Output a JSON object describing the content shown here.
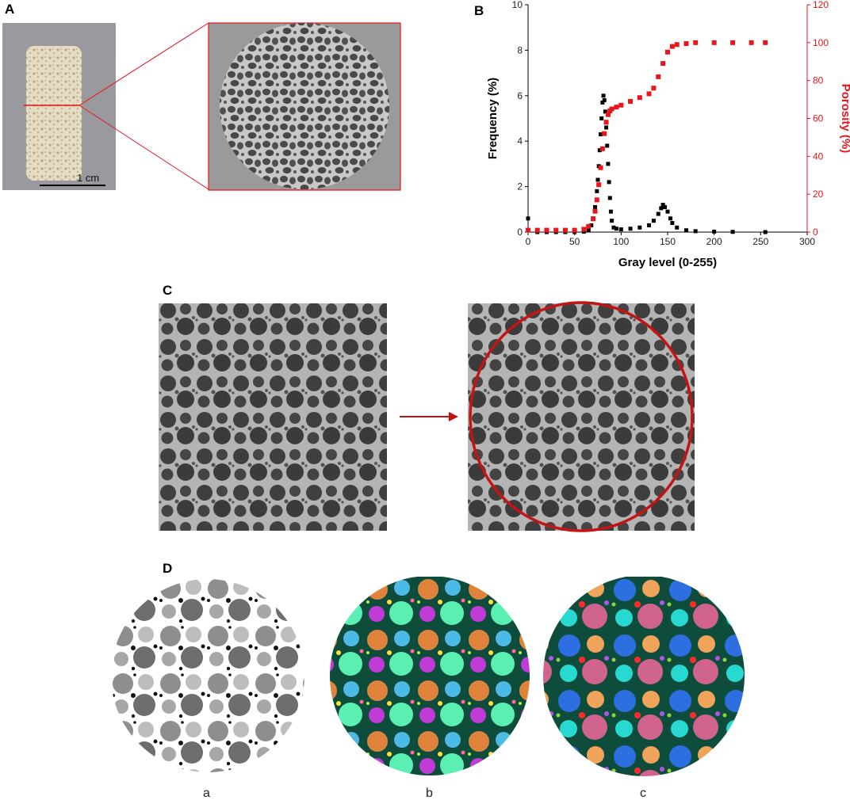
{
  "panels": {
    "A": {
      "label": "A",
      "scale_bar_text": "1 cm"
    },
    "B": {
      "label": "B"
    },
    "C": {
      "label": "C"
    },
    "D": {
      "label": "D",
      "sublabels": [
        "a",
        "b",
        "c"
      ]
    }
  },
  "chart_data": {
    "type": "scatter",
    "xlabel": "Gray level (0-255)",
    "ylabel_left": "Frequency (%)",
    "ylabel_right": "Porosity (%)",
    "xlim": [
      0,
      300
    ],
    "ylim_left": [
      0,
      10
    ],
    "ylim_right": [
      0,
      120
    ],
    "x_ticks": [
      0,
      50,
      100,
      150,
      200,
      250,
      300
    ],
    "y_left_ticks": [
      0,
      2,
      4,
      6,
      8,
      10
    ],
    "y_right_ticks": [
      0,
      20,
      40,
      60,
      80,
      100,
      120
    ],
    "colors": {
      "frequency": "#000000",
      "porosity": "#e8161b"
    },
    "series": [
      {
        "axis": "left",
        "x": [
          0,
          10,
          20,
          30,
          40,
          50,
          60,
          65,
          68,
          70,
          72,
          74,
          75,
          76,
          77,
          78,
          79,
          80,
          81,
          82,
          83,
          84,
          85,
          86,
          87,
          88,
          89,
          90,
          92,
          95,
          100,
          110,
          120,
          130,
          135,
          140,
          143,
          145,
          147,
          150,
          153,
          155,
          160,
          170,
          180,
          200,
          220,
          255
        ],
        "y": [
          0.6,
          0.0,
          0.0,
          0.0,
          0.0,
          0.0,
          0.02,
          0.1,
          0.3,
          0.6,
          1.1,
          1.8,
          2.3,
          2.9,
          3.6,
          4.3,
          5.0,
          5.7,
          6.0,
          5.8,
          5.3,
          4.6,
          3.8,
          3.0,
          2.2,
          1.5,
          0.9,
          0.5,
          0.2,
          0.15,
          0.12,
          0.15,
          0.2,
          0.3,
          0.5,
          0.8,
          1.05,
          1.2,
          1.1,
          0.9,
          0.6,
          0.4,
          0.2,
          0.08,
          0.04,
          0.02,
          0.01,
          0.0
        ]
      },
      {
        "axis": "right",
        "x": [
          0,
          10,
          20,
          30,
          40,
          50,
          60,
          65,
          70,
          72,
          74,
          76,
          78,
          80,
          82,
          84,
          86,
          88,
          90,
          95,
          100,
          110,
          120,
          130,
          135,
          140,
          145,
          150,
          155,
          160,
          170,
          180,
          200,
          220,
          240,
          255
        ],
        "y": [
          1,
          1,
          1,
          1,
          1,
          1,
          1.5,
          3,
          7,
          11,
          17,
          25,
          34,
          44,
          52,
          58,
          62,
          64,
          65,
          66,
          67,
          69,
          71,
          73,
          76,
          82,
          89,
          95,
          98,
          99,
          99.5,
          100,
          100,
          100,
          100,
          100
        ]
      }
    ]
  }
}
